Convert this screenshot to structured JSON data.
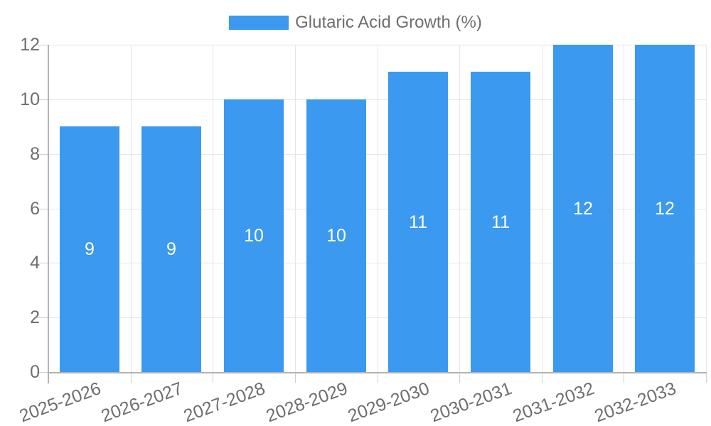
{
  "legend": {
    "label": "Glutaric Acid Growth (%)"
  },
  "chart_data": {
    "type": "bar",
    "title": "",
    "series_name": "Glutaric Acid Growth (%)",
    "categories": [
      "2025-2026",
      "2026-2027",
      "2027-2028",
      "2028-2029",
      "2029-2030",
      "2030-2031",
      "2031-2032",
      "2032-2033"
    ],
    "values": [
      9,
      9,
      10,
      10,
      11,
      11,
      12,
      12
    ],
    "value_labels": [
      "9",
      "9",
      "10",
      "10",
      "11",
      "11",
      "12",
      "12"
    ],
    "xlabel": "",
    "ylabel": "",
    "ylim": [
      0,
      12
    ],
    "yticks": [
      0,
      2,
      4,
      6,
      8,
      10,
      12
    ],
    "grid": true,
    "legend_position": "top-center",
    "x_label_rotation_deg": -20,
    "colors": {
      "bar": "#3b99f0",
      "grid": "#e6e6e6",
      "axis": "#b3b3b3",
      "tick": "#cfcfcf",
      "text": "#6e6e6e",
      "bar_value_text": "#ffffff",
      "background": "#ffffff"
    }
  }
}
